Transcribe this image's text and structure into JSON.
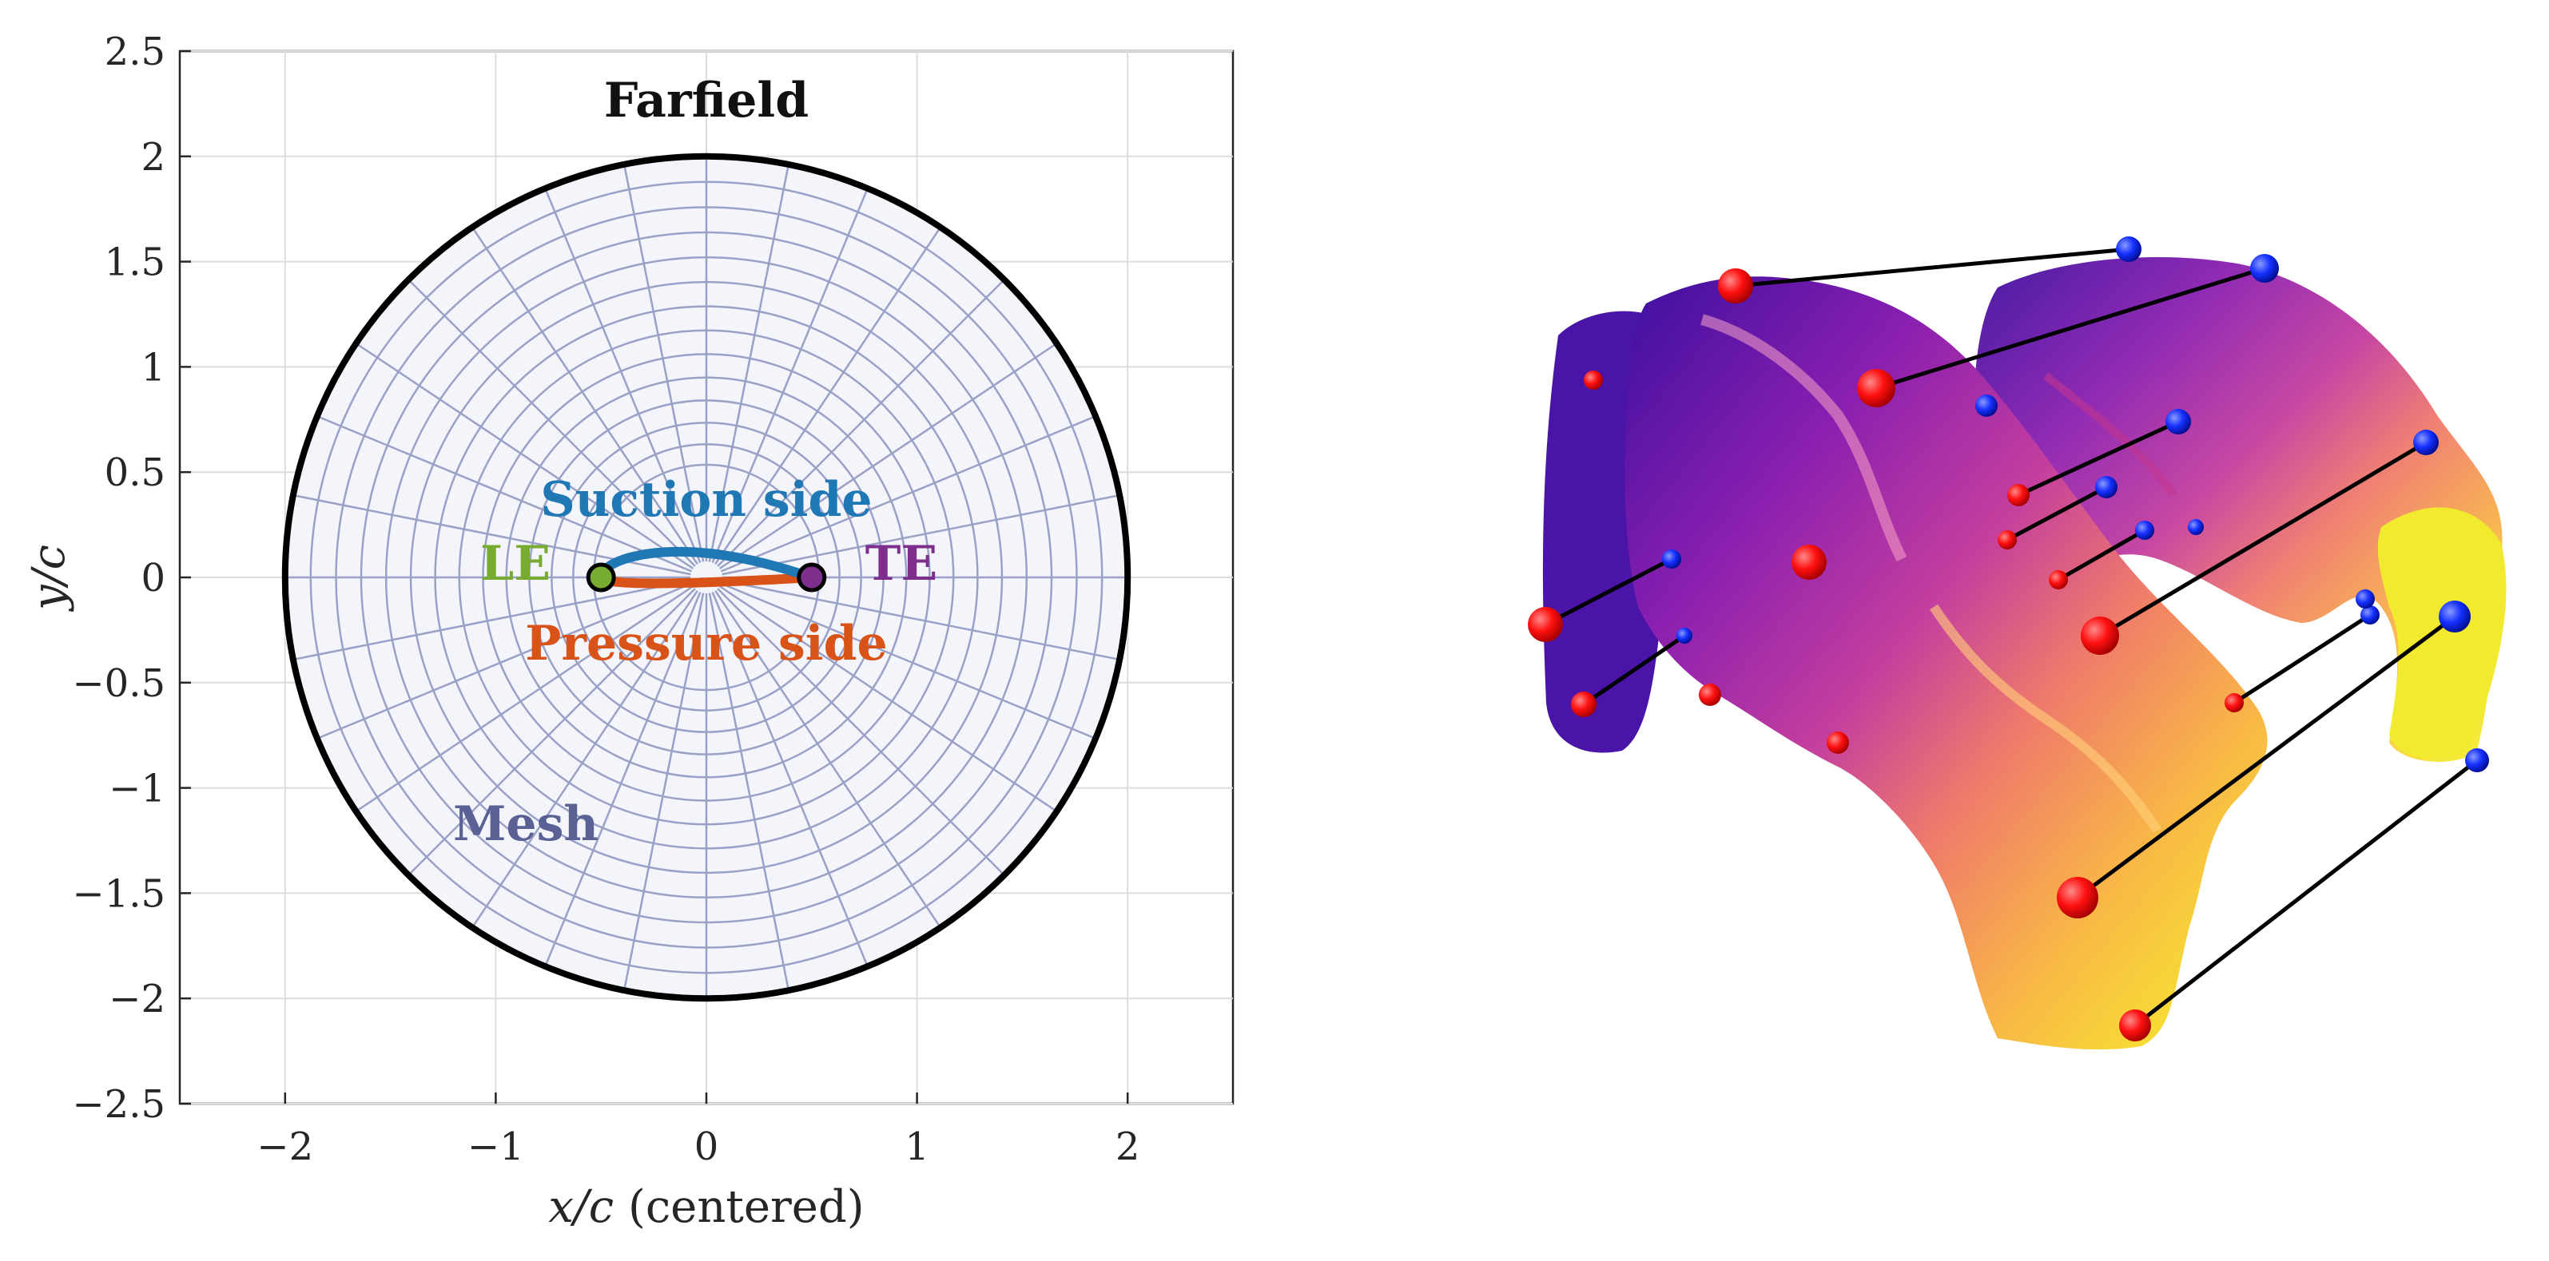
{
  "left_plot": {
    "xlabel_math": "x/c",
    "xlabel_suffix": "(centered)",
    "ylabel": "y/c",
    "xlim": [
      -2.5,
      2.5
    ],
    "ylim": [
      -2.5,
      2.5
    ],
    "xticks": [
      "−2",
      "−1",
      "0",
      "1",
      "2"
    ],
    "xtick_values": [
      -2,
      -1,
      0,
      1,
      2
    ],
    "yticks": [
      "2.5",
      "2",
      "1.5",
      "1",
      "0.5",
      "0",
      "−0.5",
      "−1",
      "−1.5",
      "−2",
      "−2.5"
    ],
    "ytick_values": [
      2.5,
      2,
      1.5,
      1,
      0.5,
      0,
      -0.5,
      -1,
      -1.5,
      -2,
      -2.5
    ],
    "grid": true,
    "farfield_radius": 2,
    "mesh_ring_count": 14,
    "mesh_spoke_count": 32,
    "leading_edge_x": -0.5,
    "trailing_edge_x": 0.5,
    "labels": {
      "farfield": "Farfield",
      "suction": "Suction side",
      "pressure": "Pressure side",
      "le": "LE",
      "te": "TE",
      "mesh": "Mesh"
    },
    "colors": {
      "suction": "#1f77b4",
      "pressure": "#d95319",
      "le": "#77ac30",
      "te": "#7e2f8e",
      "mesh": "#9aa1c6",
      "mesh_label": "#5a6194",
      "disk_fill": "#f3f5fb",
      "farfield": "#000000"
    }
  },
  "right_figure": {
    "colormap": [
      "#3b0f9f",
      "#8a1fb0",
      "#c43e9e",
      "#ef7a6b",
      "#f9b945",
      "#f5f52a"
    ],
    "point_colors": {
      "source": "#ff0000",
      "target": "#0011ff",
      "connector": "#000000"
    }
  }
}
